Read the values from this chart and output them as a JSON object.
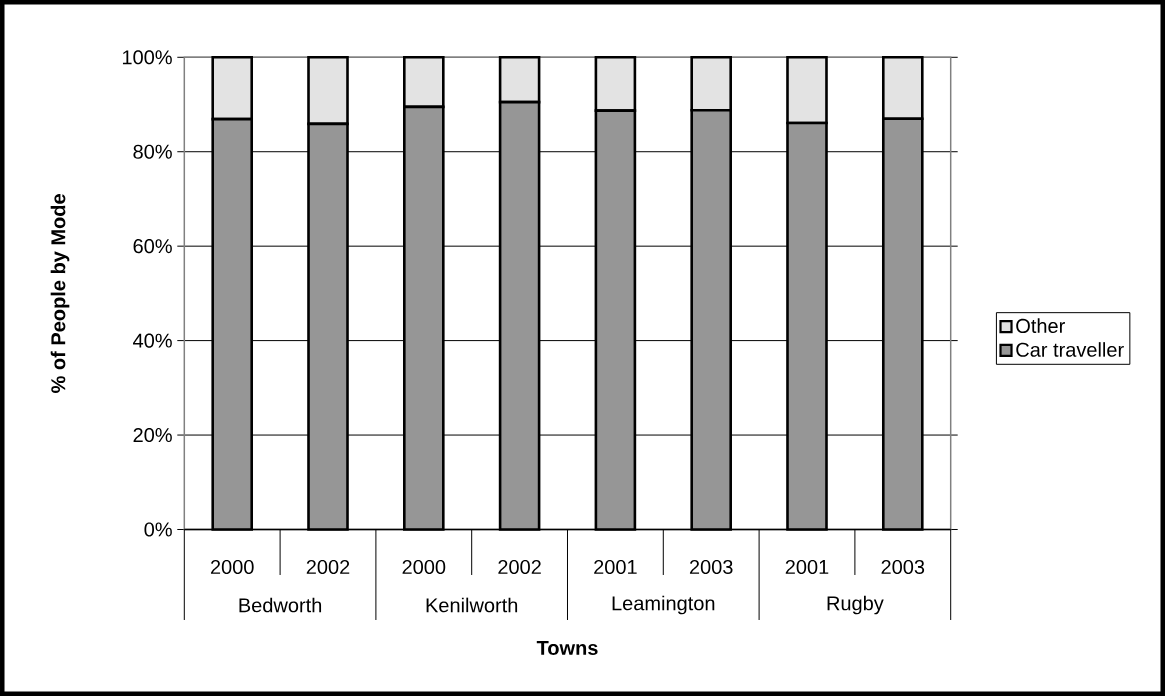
{
  "chart_data": {
    "type": "bar",
    "stacked": true,
    "xlabel": "Towns",
    "ylabel": "% of People by Mode",
    "categories": [
      "2000",
      "2002",
      "2000",
      "2002",
      "2001",
      "2003",
      "2001",
      "2003"
    ],
    "annotations": [
      "Bedworth",
      "Kenilworth",
      "Leamington",
      "Rugby"
    ],
    "series": [
      {
        "name": "Car traveller",
        "color": "#969696",
        "values": [
          86.9,
          85.9,
          89.5,
          90.5,
          88.7,
          88.8,
          86.1,
          87.0
        ]
      },
      {
        "name": "Other",
        "color": "#e3e3e3",
        "values": [
          13.1,
          14.1,
          10.5,
          9.5,
          11.3,
          11.2,
          13.9,
          13.0
        ]
      }
    ],
    "ylim": [
      0,
      100
    ],
    "yticks": [
      {
        "value": 0,
        "label": "0%"
      },
      {
        "value": 20,
        "label": "20%"
      },
      {
        "value": 40,
        "label": "40%"
      },
      {
        "value": 60,
        "label": "60%"
      },
      {
        "value": 80,
        "label": "80%"
      },
      {
        "value": 100,
        "label": "100%"
      }
    ],
    "grid": "y",
    "legend": "right"
  }
}
